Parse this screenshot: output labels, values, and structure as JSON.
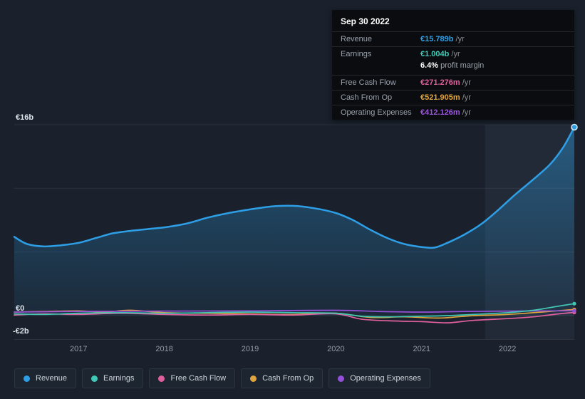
{
  "tooltip": {
    "date": "Sep 30 2022",
    "rows": [
      {
        "label": "Revenue",
        "value": "€15.789b",
        "suffix": " /yr",
        "color": "#2ba3e8"
      },
      {
        "label": "Earnings",
        "value": "€1.004b",
        "suffix": " /yr",
        "color": "#3fcab6"
      },
      {
        "label": "Free Cash Flow",
        "value": "€271.276m",
        "suffix": " /yr",
        "color": "#e0609e"
      },
      {
        "label": "Cash From Op",
        "value": "€521.905m",
        "suffix": " /yr",
        "color": "#e0a43f"
      },
      {
        "label": "Operating Expenses",
        "value": "€412.126m",
        "suffix": " /yr",
        "color": "#9a55dc"
      }
    ],
    "profit_margin": {
      "value": "6.4%",
      "label": "profit margin"
    }
  },
  "y_axis": [
    "€16b",
    "€0",
    "-€2b"
  ],
  "x_axis": [
    "2017",
    "2018",
    "2019",
    "2020",
    "2021",
    "2022"
  ],
  "legend": [
    {
      "label": "Revenue",
      "color": "#2e9fe6"
    },
    {
      "label": "Earnings",
      "color": "#40c8b4"
    },
    {
      "label": "Free Cash Flow",
      "color": "#e0609e"
    },
    {
      "label": "Cash From Op",
      "color": "#e0a43f"
    },
    {
      "label": "Operating Expenses",
      "color": "#9550d8"
    }
  ],
  "chart_data": {
    "type": "area",
    "title": "",
    "unit": "EUR billions per year",
    "ylim": [
      -2,
      16
    ],
    "x_range": [
      2016.25,
      2022.78
    ],
    "x_ticks": [
      2017,
      2018,
      2019,
      2020,
      2021,
      2022
    ],
    "gridline_values": [
      16,
      10.667,
      5.333,
      0,
      -2
    ],
    "y_tick_labels": {
      "16": "€16b",
      "0": "€0",
      "-2": "-€2b"
    },
    "highlight_start": 2021.74,
    "legend_position": "bottom",
    "series": [
      {
        "name": "Revenue",
        "color": "#2e9fe6",
        "area": true,
        "x": [
          2016.25,
          2016.4,
          2016.6,
          2016.8,
          2017.0,
          2017.2,
          2017.4,
          2017.6,
          2017.8,
          2018.0,
          2018.25,
          2018.5,
          2018.75,
          2019.0,
          2019.25,
          2019.5,
          2019.75,
          2020.0,
          2020.2,
          2020.4,
          2020.6,
          2020.8,
          2021.0,
          2021.15,
          2021.3,
          2021.5,
          2021.7,
          2021.9,
          2022.1,
          2022.3,
          2022.5,
          2022.65,
          2022.78
        ],
        "values": [
          6.6,
          6.0,
          5.8,
          5.9,
          6.1,
          6.5,
          6.9,
          7.1,
          7.25,
          7.4,
          7.7,
          8.2,
          8.6,
          8.9,
          9.15,
          9.2,
          9.0,
          8.6,
          8.0,
          7.2,
          6.5,
          6.0,
          5.75,
          5.7,
          6.1,
          6.8,
          7.7,
          8.9,
          10.2,
          11.4,
          12.7,
          14.1,
          15.789
        ]
      },
      {
        "name": "Cash From Op",
        "color": "#e0a43f",
        "area": false,
        "x": [
          2016.25,
          2016.6,
          2017.0,
          2017.3,
          2017.6,
          2018.0,
          2018.5,
          2019.0,
          2019.5,
          2020.0,
          2020.4,
          2020.8,
          2021.2,
          2021.6,
          2022.0,
          2022.4,
          2022.78
        ],
        "values": [
          0.3,
          0.35,
          0.4,
          0.3,
          0.45,
          0.25,
          0.2,
          0.15,
          0.1,
          0.2,
          -0.15,
          -0.1,
          -0.2,
          0.0,
          0.1,
          0.3,
          0.522
        ]
      },
      {
        "name": "Free Cash Flow",
        "color": "#e0609e",
        "area": false,
        "x": [
          2016.25,
          2016.6,
          2017.0,
          2017.5,
          2018.0,
          2018.5,
          2019.0,
          2019.5,
          2020.0,
          2020.3,
          2020.7,
          2021.0,
          2021.3,
          2021.6,
          2022.0,
          2022.3,
          2022.6,
          2022.78
        ],
        "values": [
          0.05,
          0.15,
          0.1,
          0.2,
          0.1,
          0.05,
          0.1,
          0.05,
          0.15,
          -0.3,
          -0.45,
          -0.5,
          -0.6,
          -0.4,
          -0.25,
          -0.1,
          0.15,
          0.271
        ]
      },
      {
        "name": "Operating Expenses",
        "color": "#9550d8",
        "area": false,
        "x": [
          2016.25,
          2017.0,
          2018.0,
          2019.0,
          2020.0,
          2020.5,
          2021.0,
          2021.5,
          2022.0,
          2022.5,
          2022.78
        ],
        "values": [
          0.3,
          0.35,
          0.38,
          0.4,
          0.45,
          0.35,
          0.3,
          0.35,
          0.38,
          0.4,
          0.412
        ]
      },
      {
        "name": "Earnings",
        "color": "#40c8b4",
        "area": false,
        "x": [
          2016.25,
          2016.6,
          2017.0,
          2017.5,
          2018.0,
          2018.5,
          2019.0,
          2019.5,
          2020.0,
          2020.3,
          2020.6,
          2021.0,
          2021.3,
          2021.6,
          2022.0,
          2022.3,
          2022.6,
          2022.78
        ],
        "values": [
          0.15,
          0.1,
          0.2,
          0.25,
          0.2,
          0.25,
          0.3,
          0.25,
          0.2,
          -0.05,
          -0.1,
          -0.05,
          0.0,
          0.1,
          0.25,
          0.45,
          0.8,
          1.004
        ]
      }
    ]
  }
}
